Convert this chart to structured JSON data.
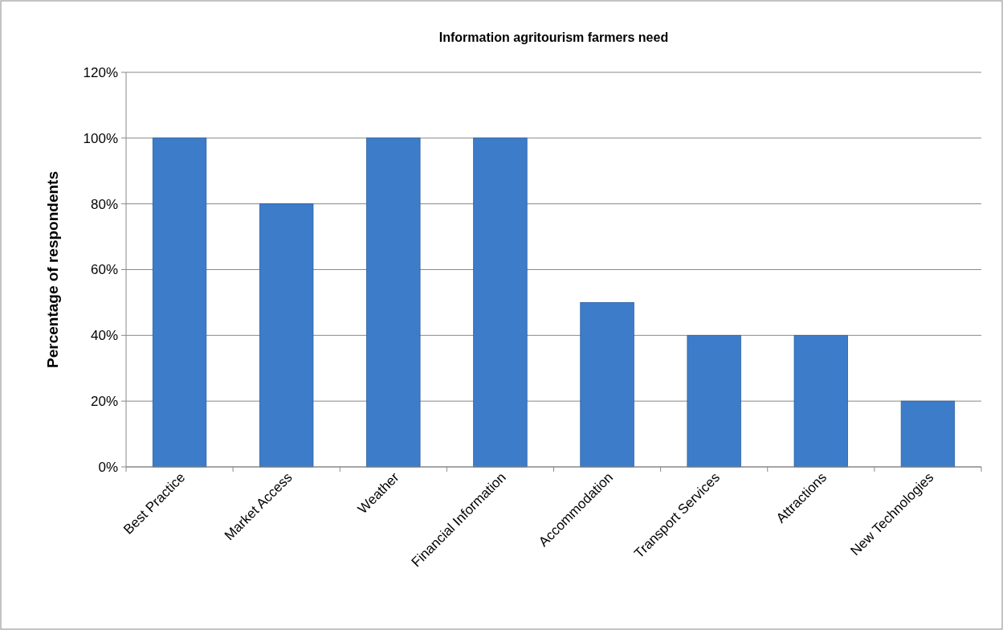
{
  "chart_data": {
    "type": "bar",
    "title": "Information agritourism farmers need",
    "ylabel": "Percentage of respondents",
    "categories": [
      "Best Practice",
      "Market Access",
      "Weather",
      "Financial Information",
      "Accommodation",
      "Transport Services",
      "Attractions",
      "New Technologies"
    ],
    "values": [
      100,
      80,
      100,
      100,
      50,
      40,
      40,
      20
    ],
    "color": "#3d7cc9",
    "ylim": [
      0,
      120
    ],
    "yticks": [
      {
        "value": 0,
        "label": "0%"
      },
      {
        "value": 20,
        "label": "20%"
      },
      {
        "value": 40,
        "label": "40%"
      },
      {
        "value": 60,
        "label": "60%"
      },
      {
        "value": 80,
        "label": "80%"
      },
      {
        "value": 100,
        "label": "100%"
      },
      {
        "value": 120,
        "label": "120%"
      }
    ],
    "grid": "y"
  }
}
